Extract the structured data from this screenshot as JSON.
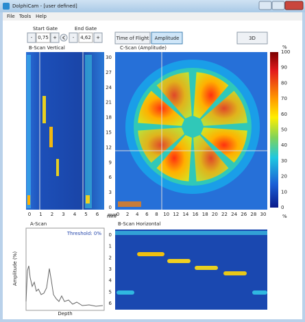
{
  "window": {
    "title": "DolphiCam - [user defined]"
  },
  "menu": [
    "File",
    "Tools",
    "Help"
  ],
  "toolbar": {
    "start_gate": {
      "label": "Start Gate",
      "minus": "-",
      "value": "0,75",
      "plus": "+"
    },
    "end_gate": {
      "label": "End Gate",
      "minus": "-",
      "value": "4,62",
      "plus": "+"
    },
    "buttons": [
      "Time of Flight",
      "Amplitude",
      "3D"
    ]
  },
  "bscan_vertical": {
    "title": "B-Scan Vertical",
    "xticks": [
      0,
      1,
      2,
      3,
      4,
      5,
      6
    ],
    "unit": "mm"
  },
  "cscan": {
    "title": "C-Scan (Amplitude)",
    "yticks": [
      30,
      27,
      24,
      21,
      18,
      15,
      12,
      9,
      6,
      3,
      0
    ],
    "xticks": [
      0,
      2,
      4,
      6,
      8,
      10,
      12,
      14,
      16,
      18,
      20,
      22,
      24,
      26,
      28,
      30
    ],
    "unit": "mm",
    "colorbar": {
      "unit_top": "%",
      "ticks": [
        100,
        90,
        80,
        70,
        60,
        50,
        40,
        30,
        20,
        10,
        0
      ],
      "unit_bottom": "%"
    }
  },
  "ascan": {
    "title": "A-Scan",
    "threshold": "Threshold: 0%",
    "ylabel": "Amplitude (%)",
    "xlabel": "Depth"
  },
  "bscan_horizontal": {
    "title": "B-Scan Horizontal",
    "yticks": [
      0,
      1,
      2,
      3,
      4,
      5,
      6
    ]
  }
}
